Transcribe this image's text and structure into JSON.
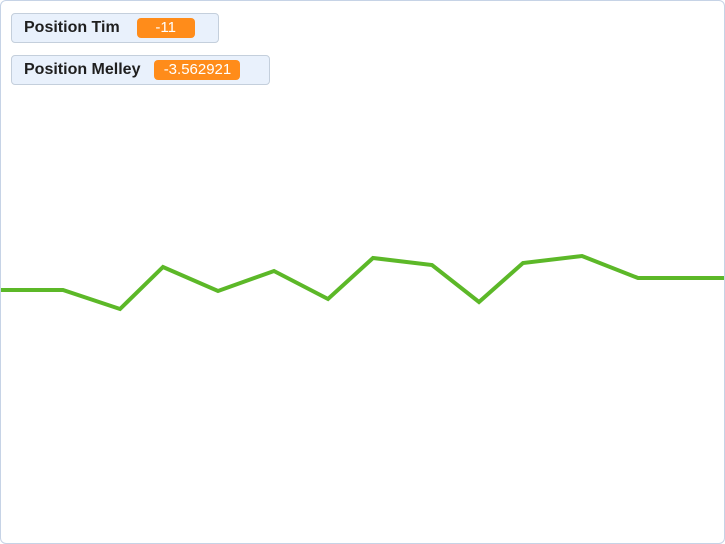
{
  "monitors": {
    "tim": {
      "label": "Position Tim",
      "value": "-11"
    },
    "melley": {
      "label": "Position Melley",
      "value": "-3.562921"
    }
  },
  "colors": {
    "monitor_value_bg": "#ff8c1a",
    "pen_line": "#5cb828",
    "stage_border": "#c6d3e6"
  }
}
